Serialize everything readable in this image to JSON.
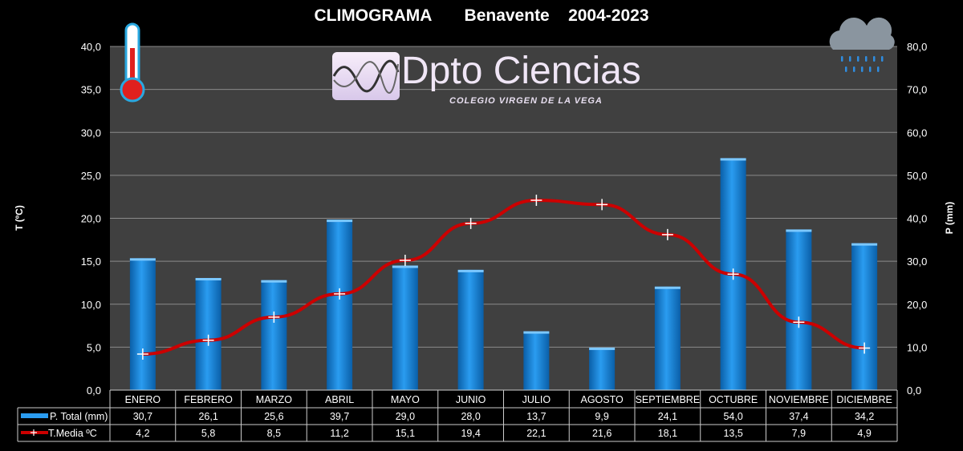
{
  "chart_data": {
    "type": "bar+line",
    "title": "CLIMOGRAMA       Benavente    2004-2023",
    "logo": {
      "main": "Dpto Ciencias",
      "sub": "COLEGIO VIRGEN DE LA VEGA"
    },
    "categories": [
      "ENERO",
      "FEBRERO",
      "MARZO",
      "ABRIL",
      "MAYO",
      "JUNIO",
      "JULIO",
      "AGOSTO",
      "SEPTIEMBRE",
      "OCTUBRE",
      "NOVIEMBRE",
      "DICIEMBRE"
    ],
    "series": [
      {
        "name": "P. Total (mm)",
        "type": "bar",
        "axis": "right",
        "color": "#1e8fe0",
        "values": [
          30.7,
          26.1,
          25.6,
          39.7,
          29.0,
          28.0,
          13.7,
          9.9,
          24.1,
          54.0,
          37.4,
          34.2
        ],
        "labels": [
          "30,7",
          "26,1",
          "25,6",
          "39,7",
          "29,0",
          "28,0",
          "13,7",
          "9,9",
          "24,1",
          "54,0",
          "37,4",
          "34,2"
        ]
      },
      {
        "name": "T.Media ºC",
        "type": "line",
        "axis": "left",
        "color": "#cc0000",
        "values": [
          4.2,
          5.8,
          8.5,
          11.2,
          15.1,
          19.4,
          22.1,
          21.6,
          18.1,
          13.5,
          7.9,
          4.9
        ],
        "labels": [
          "4,2",
          "5,8",
          "8,5",
          "11,2",
          "15,1",
          "19,4",
          "22,1",
          "21,6",
          "18,1",
          "13,5",
          "7,9",
          "4,9"
        ]
      }
    ],
    "ylabel": "T (ºC)",
    "ylabel_right": "P (mm)",
    "ylim": [
      0,
      40
    ],
    "ylim_right": [
      0,
      80
    ],
    "yticks": [
      "0,0",
      "5,0",
      "10,0",
      "15,0",
      "20,0",
      "25,0",
      "30,0",
      "35,0",
      "40,0"
    ],
    "yticks_right": [
      "0,0",
      "10,0",
      "20,0",
      "30,0",
      "40,0",
      "50,0",
      "60,0",
      "70,0",
      "80,0"
    ],
    "grid": true,
    "legend": "data-table"
  }
}
